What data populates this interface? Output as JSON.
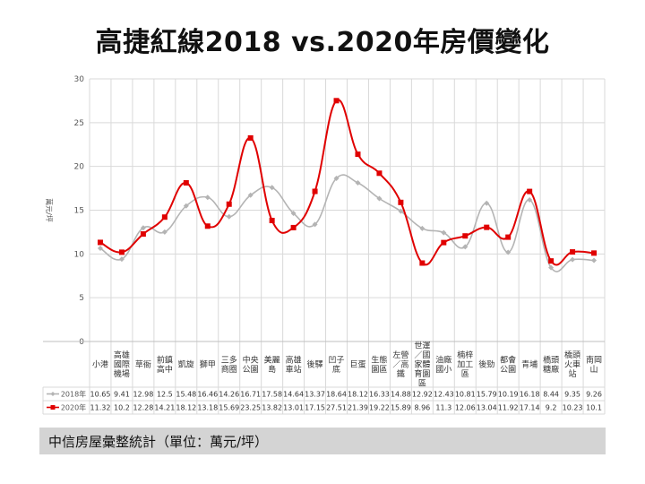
{
  "title": "高捷紅線2018 vs.2020年房價變化",
  "footer": "中信房屋彙整統計（單位：萬元/坪）",
  "colors": {
    "series_2018": "#b4b4b4",
    "series_2020": "#e00000",
    "grid": "#d9d9d9",
    "axis_text": "#595959"
  },
  "chart_data": {
    "type": "line",
    "ylabel": "萬元/坪",
    "ylim": [
      0,
      30
    ],
    "yticks": [
      0,
      5,
      10,
      15,
      20,
      25,
      30
    ],
    "grid": true,
    "smooth": true,
    "legend": "table-bottom",
    "categories": [
      [
        "小港"
      ],
      [
        "高雄",
        "國際",
        "機場"
      ],
      [
        "草衙"
      ],
      [
        "前鎮",
        "高中"
      ],
      [
        "凱旋"
      ],
      [
        "獅甲"
      ],
      [
        "三多",
        "商圈"
      ],
      [
        "中央",
        "公園"
      ],
      [
        "美麗",
        "島"
      ],
      [
        "高雄",
        "車站"
      ],
      [
        "後驛"
      ],
      [
        "凹子",
        "底"
      ],
      [
        "巨蛋"
      ],
      [
        "生態",
        "園區"
      ],
      [
        "左營",
        "／高",
        "鐵"
      ],
      [
        "世運",
        "／國",
        "家體",
        "育園",
        "區"
      ],
      [
        "油廠",
        "國小"
      ],
      [
        "楠梓",
        "加工",
        "區"
      ],
      [
        "後勁"
      ],
      [
        "都會",
        "公園"
      ],
      [
        "青埔"
      ],
      [
        "橋頭",
        "糖廠"
      ],
      [
        "橋頭",
        "火車",
        "站"
      ],
      [
        "南岡",
        "山"
      ]
    ],
    "series": [
      {
        "name": "2018年",
        "marker": "diamond",
        "values": [
          10.65,
          9.41,
          12.98,
          12.5,
          15.48,
          16.46,
          14.26,
          16.71,
          17.58,
          14.64,
          13.37,
          18.64,
          18.12,
          16.33,
          14.88,
          12.92,
          12.43,
          10.81,
          15.79,
          10.19,
          16.18,
          8.44,
          9.35,
          9.26
        ]
      },
      {
        "name": "2020年",
        "marker": "square",
        "values": [
          11.32,
          10.2,
          12.28,
          14.21,
          18.12,
          13.18,
          15.69,
          23.25,
          13.82,
          13.01,
          17.15,
          27.51,
          21.39,
          19.22,
          15.89,
          8.96,
          11.3,
          12.06,
          13.04,
          11.92,
          17.14,
          9.2,
          10.23,
          10.1
        ]
      }
    ]
  }
}
